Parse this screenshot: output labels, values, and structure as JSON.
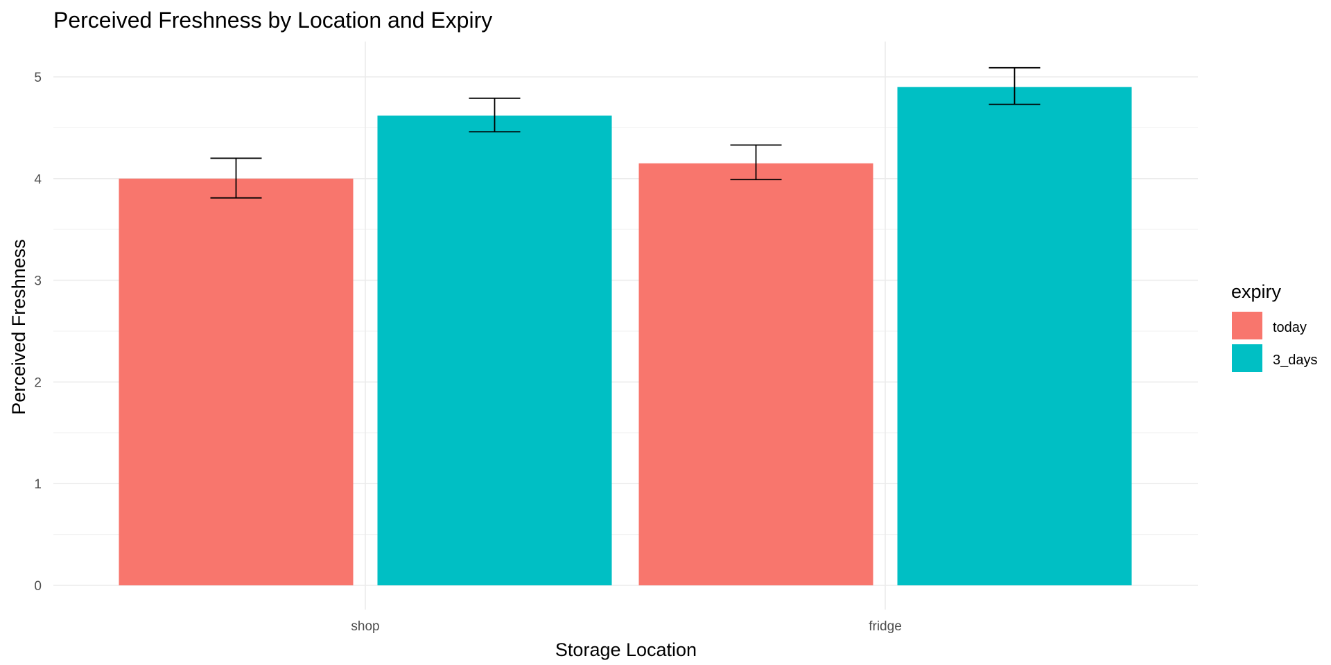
{
  "chart_data": {
    "type": "bar",
    "title": "Perceived Freshness by Location and Expiry",
    "xlabel": "Storage Location",
    "ylabel": "Perceived Freshness",
    "categories": [
      "shop",
      "fridge"
    ],
    "ylim": [
      0,
      5.3
    ],
    "yticks": [
      0,
      1,
      2,
      3,
      4,
      5
    ],
    "grid": true,
    "legend": {
      "title": "expiry",
      "position": "right"
    },
    "series": [
      {
        "name": "today",
        "color": "#F8766D",
        "values": [
          4.0,
          4.15
        ],
        "error_low": [
          3.81,
          3.99
        ],
        "error_high": [
          4.2,
          4.33
        ]
      },
      {
        "name": "3_days",
        "color": "#00BFC4",
        "values": [
          4.62,
          4.9
        ],
        "error_low": [
          4.46,
          4.73
        ],
        "error_high": [
          4.79,
          5.09
        ]
      }
    ]
  }
}
